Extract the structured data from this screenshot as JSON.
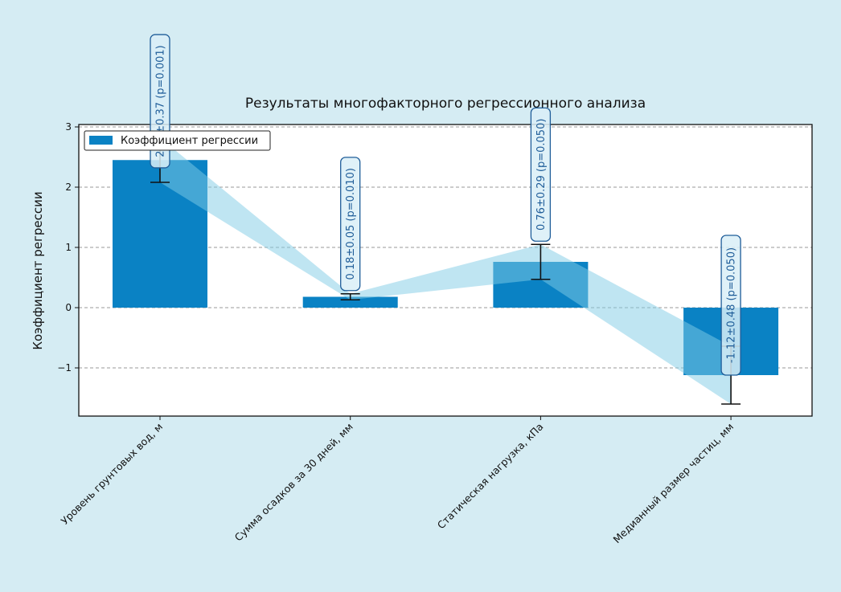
{
  "chart_data": {
    "type": "bar",
    "title": "Результаты многофакторного регрессионного анализа",
    "xlabel": "",
    "ylabel": "Коэффициент регрессии",
    "categories": [
      "Уровень грунтовых вод, м",
      "Сумма осадков за 30 дней, мм",
      "Статическая нагрузка, кПа",
      "Медианный размер частиц, мм"
    ],
    "series": [
      {
        "name": "Коэффициент регрессии",
        "values": [
          2.45,
          0.18,
          0.76,
          -1.12
        ],
        "errors": [
          0.37,
          0.05,
          0.29,
          0.48
        ],
        "annotations": [
          "2.45±0.37 (p=0.001)",
          "0.18±0.05 (p=0.010)",
          "0.76±0.29 (p=0.050)",
          "-1.12±0.48 (p=0.050)"
        ]
      }
    ],
    "ylim": [
      -1.8,
      3.04
    ],
    "yticks": [
      -1,
      0,
      1,
      2,
      3
    ],
    "ytick_labels": [
      "−1",
      "0",
      "1",
      "2",
      "3"
    ],
    "grid": "y-dashed",
    "legend": "top-left",
    "colors": {
      "bar": "#0a82c4",
      "band": "#7fcbe6",
      "annotation_text": "#1f5d99",
      "background": "#d5ecf3"
    }
  }
}
